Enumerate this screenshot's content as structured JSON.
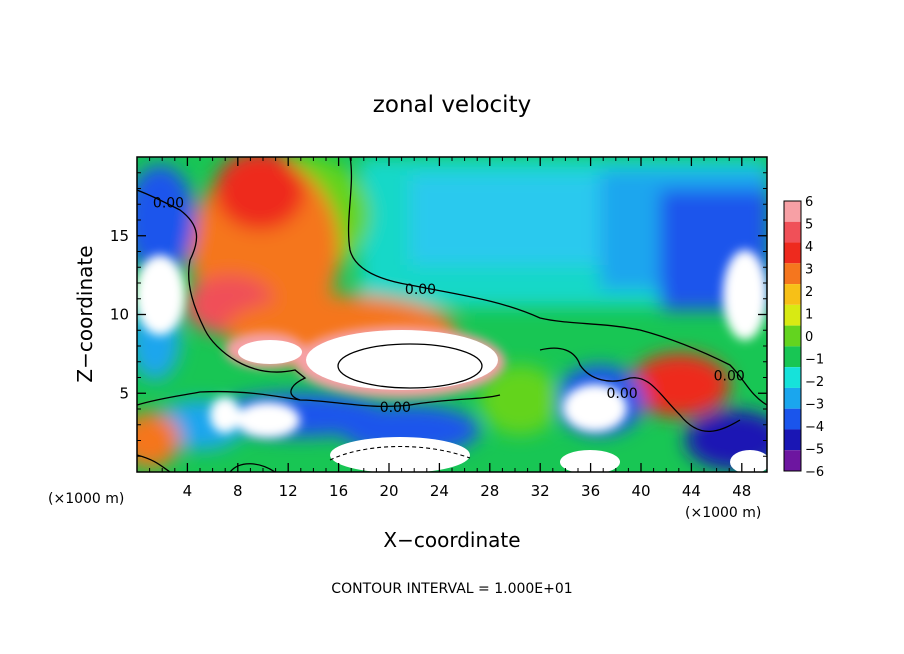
{
  "chart_data": {
    "type": "heatmap",
    "title": "zonal velocity",
    "xlabel": "X−coordinate",
    "ylabel": "Z−coordinate",
    "x_units": "(×1000 m)",
    "z_units": "(×1000 m)",
    "xlim": [
      0,
      50
    ],
    "ylim": [
      0,
      20
    ],
    "xticks": [
      4,
      8,
      12,
      16,
      20,
      24,
      28,
      32,
      36,
      40,
      44,
      48
    ],
    "yticks": [
      5,
      10,
      15
    ],
    "colorbar": {
      "levels": [
        6,
        5,
        4,
        3,
        2,
        1,
        0,
        -1,
        -2,
        -3,
        -4,
        -5,
        -6
      ],
      "labels": [
        "6",
        "5",
        "4",
        "3",
        "2",
        "1",
        "0",
        "−1",
        "−2",
        "−3",
        "−4",
        "−5",
        "−6"
      ],
      "colors": [
        "#f7a0a5",
        "#f05058",
        "#ee2a1e",
        "#f5761e",
        "#f7c017",
        "#d8ea13",
        "#63d41f",
        "#18c654",
        "#16e2da",
        "#1aa6ee",
        "#1a55ec",
        "#1a16b4",
        "#6d16a0"
      ]
    },
    "contour_labels": [
      {
        "text": "0.00",
        "x": 2.5,
        "y": 16.8
      },
      {
        "text": "0.00",
        "x": 22.5,
        "y": 11.3
      },
      {
        "text": "0.00",
        "x": 20.5,
        "y": 3.8
      },
      {
        "text": "0.00",
        "x": 38.5,
        "y": 4.7
      },
      {
        "text": "0.00",
        "x": 47.0,
        "y": 5.8
      }
    ],
    "contour_interval_label": "CONTOUR INTERVAL = 1.000E+01",
    "grid": false
  }
}
